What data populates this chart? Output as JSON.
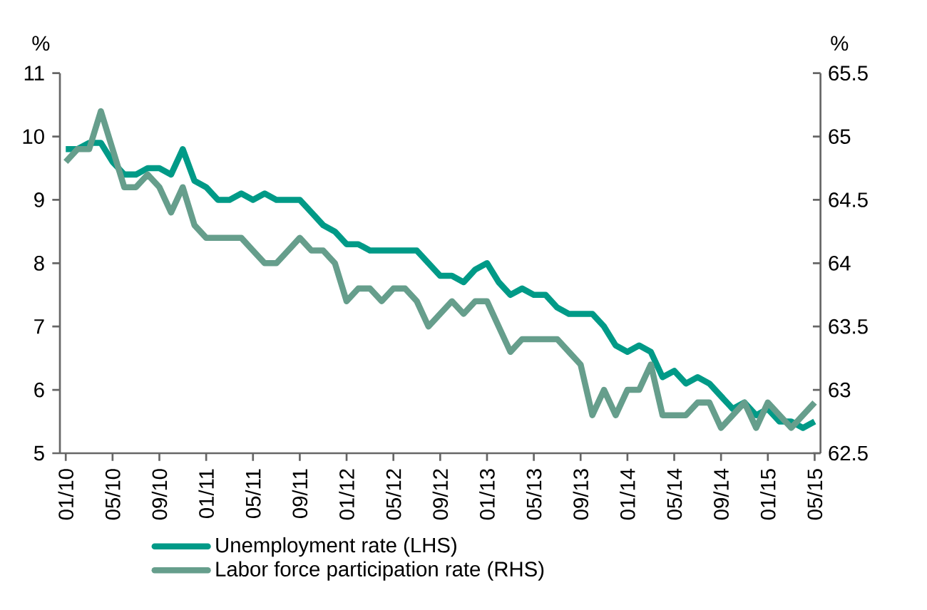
{
  "chart_data": {
    "type": "line",
    "ylabel": "%",
    "y2label": "%",
    "categories": [
      "01/10",
      null,
      null,
      null,
      "05/10",
      null,
      null,
      null,
      "09/10",
      null,
      null,
      null,
      "01/11",
      null,
      null,
      null,
      "05/11",
      null,
      null,
      null,
      "09/11",
      null,
      null,
      null,
      "01/12",
      null,
      null,
      null,
      "05/12",
      null,
      null,
      null,
      "09/12",
      null,
      null,
      null,
      "01/13",
      null,
      null,
      null,
      "05/13",
      null,
      null,
      null,
      "09/13",
      null,
      null,
      null,
      "01/14",
      null,
      null,
      null,
      "05/14",
      null,
      null,
      null,
      "09/14",
      null,
      null,
      null,
      "01/15",
      null,
      null,
      null,
      "05/15"
    ],
    "series": [
      {
        "name": "Unemployment rate (LHS)",
        "color": "#009a87",
        "axis": "y",
        "values": [
          9.8,
          9.8,
          9.9,
          9.9,
          9.6,
          9.4,
          9.4,
          9.5,
          9.5,
          9.4,
          9.8,
          9.3,
          9.2,
          9.0,
          9.0,
          9.1,
          9.0,
          9.1,
          9.0,
          9.0,
          9.0,
          8.8,
          8.6,
          8.5,
          8.3,
          8.3,
          8.2,
          8.2,
          8.2,
          8.2,
          8.2,
          8.0,
          7.8,
          7.8,
          7.7,
          7.9,
          8.0,
          7.7,
          7.5,
          7.6,
          7.5,
          7.5,
          7.3,
          7.2,
          7.2,
          7.2,
          7.0,
          6.7,
          6.6,
          6.7,
          6.6,
          6.2,
          6.3,
          6.1,
          6.2,
          6.1,
          5.9,
          5.7,
          5.8,
          5.6,
          5.7,
          5.5,
          5.5,
          5.4,
          5.5
        ]
      },
      {
        "name": "Labor force participation rate (RHS)",
        "color": "#669e8c",
        "axis": "y2",
        "values": [
          64.8,
          64.9,
          64.9,
          65.2,
          64.9,
          64.6,
          64.6,
          64.7,
          64.6,
          64.4,
          64.6,
          64.3,
          64.2,
          64.2,
          64.2,
          64.2,
          64.1,
          64.0,
          64.0,
          64.1,
          64.2,
          64.1,
          64.1,
          64.0,
          63.7,
          63.8,
          63.8,
          63.7,
          63.8,
          63.8,
          63.7,
          63.5,
          63.6,
          63.7,
          63.6,
          63.7,
          63.7,
          63.5,
          63.3,
          63.4,
          63.4,
          63.4,
          63.4,
          63.3,
          63.2,
          62.8,
          63.0,
          62.8,
          63.0,
          63.0,
          63.2,
          62.8,
          62.8,
          62.8,
          62.9,
          62.9,
          62.7,
          62.8,
          62.9,
          62.7,
          62.9,
          62.8,
          62.7,
          62.8,
          62.9
        ]
      }
    ],
    "ylim": [
      5,
      11
    ],
    "yticks": [
      5,
      6,
      7,
      8,
      9,
      10,
      11
    ],
    "y2lim": [
      62.5,
      65.5
    ],
    "y2ticks": [
      62.5,
      63,
      63.5,
      64,
      64.5,
      65,
      65.5
    ],
    "legend": "bottom",
    "marker": "none",
    "line_style": "solid"
  }
}
